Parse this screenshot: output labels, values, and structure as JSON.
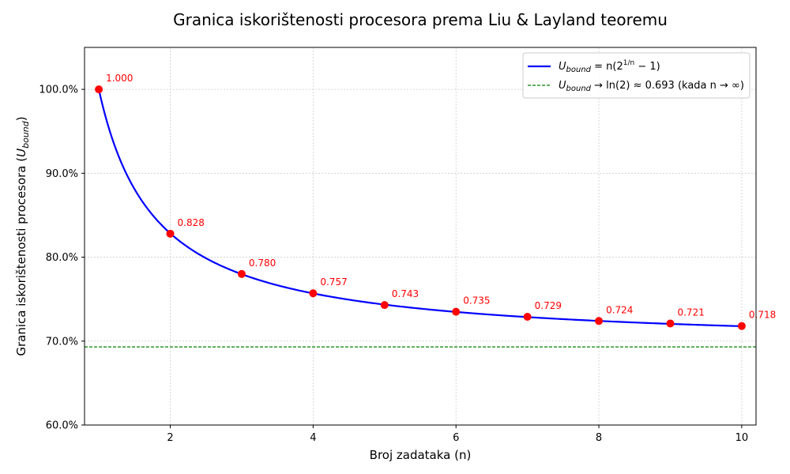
{
  "chart_data": {
    "type": "line",
    "title": "Granica iskorištenosti procesora prema Liu & Layland teoremu",
    "xlabel": "Broj zadataka (n)",
    "ylabel_prefix": "Granica iskorištenosti procesora (",
    "ylabel_var": "U",
    "ylabel_sub": "bound",
    "ylabel_suffix": ")",
    "xlim": [
      0.8,
      10.2
    ],
    "ylim": [
      0.6,
      1.05
    ],
    "x_ticks": [
      2,
      4,
      6,
      8,
      10
    ],
    "x_tick_labels": [
      "2",
      "4",
      "6",
      "8",
      "10"
    ],
    "y_ticks": [
      0.6,
      0.7,
      0.8,
      0.9,
      1.0
    ],
    "y_tick_labels": [
      "60.0%",
      "70.0%",
      "80.0%",
      "90.0%",
      "100.0%"
    ],
    "grid": true,
    "legend_position": "top-right",
    "series": [
      {
        "name": "U_bound = n(2^(1/n) − 1)",
        "kind": "curve",
        "formula": "n(2^(1/n)-1)",
        "color": "#0000ff",
        "x_range": [
          1,
          10
        ]
      },
      {
        "name": "U_bound → ln(2) ≈ 0.693 (kada n → ∞)",
        "kind": "hline",
        "y": 0.6931,
        "color": "#008000"
      }
    ],
    "points": {
      "color": "#ff0000",
      "x": [
        1,
        2,
        3,
        4,
        5,
        6,
        7,
        8,
        9,
        10
      ],
      "y": [
        1.0,
        0.828,
        0.78,
        0.757,
        0.743,
        0.735,
        0.729,
        0.724,
        0.721,
        0.718
      ],
      "labels": [
        "1.000",
        "0.828",
        "0.780",
        "0.757",
        "0.743",
        "0.735",
        "0.729",
        "0.724",
        "0.721",
        "0.718"
      ]
    },
    "legend": [
      {
        "var": "U",
        "sub": "bound",
        "mid": " = n(2",
        "sup": "1/n",
        "end": " − 1)"
      },
      {
        "var": "U",
        "sub": "bound",
        "mid": " → ln(2) ≈ 0.693 (kada ",
        "sup": "",
        "end": "n → ∞)"
      }
    ]
  }
}
